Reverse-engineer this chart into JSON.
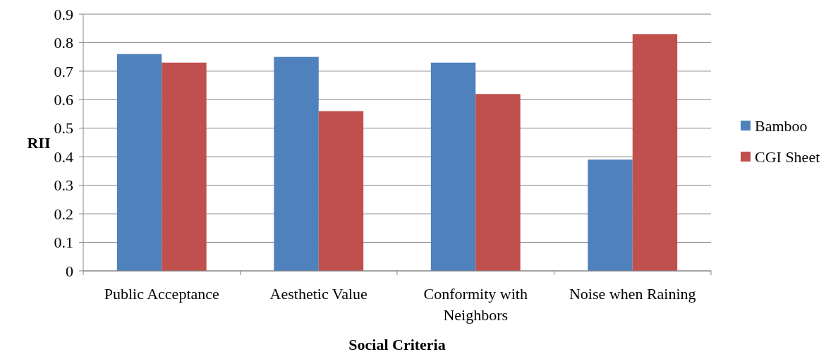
{
  "chart_data": {
    "type": "bar",
    "xlabel": "Social Criteria",
    "ylabel": "RII",
    "categories": [
      "Public Acceptance",
      "Aesthetic Value",
      "Conformity with Neighbors",
      "Noise when Raining"
    ],
    "series": [
      {
        "name": "Bamboo",
        "color": "#4f81bd",
        "values": [
          0.76,
          0.75,
          0.73,
          0.39
        ]
      },
      {
        "name": "CGI Sheet",
        "color": "#c0504d",
        "values": [
          0.73,
          0.56,
          0.62,
          0.83
        ]
      }
    ],
    "ylim": [
      0,
      0.9
    ],
    "yticks": [
      0,
      0.1,
      0.2,
      0.3,
      0.4,
      0.5,
      0.6,
      0.7,
      0.8,
      0.9
    ],
    "grid": "y",
    "legend": "right"
  }
}
